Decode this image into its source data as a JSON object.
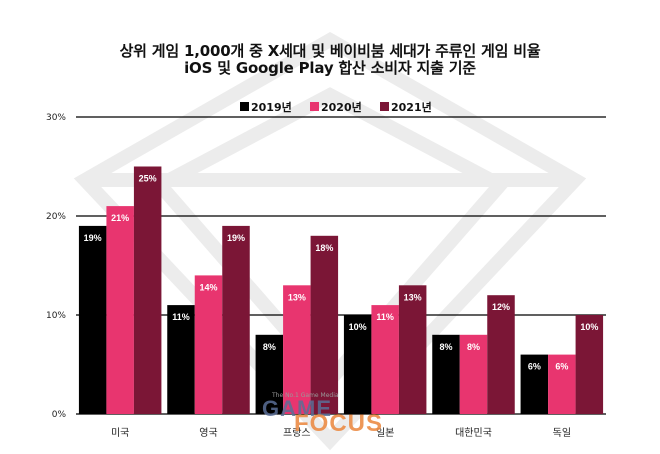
{
  "title": "상위 게임 1,000개 중 X세대 및 베이비붐 세대가 주류인 게임 비율",
  "subtitle": "iOS 및 Google Play 합산 소비자 지출 기준",
  "colors": {
    "s2019": "#000000",
    "s2020": "#e8356f",
    "s2021": "#7b1636",
    "grid": "#000000",
    "watermark": "#ececec"
  },
  "watermark_text": {
    "small": "The No.1 Game Media",
    "game": "GAME",
    "focus": "FOCUS"
  },
  "chart_data": {
    "type": "bar",
    "categories": [
      "미국",
      "영국",
      "프랑스",
      "일본",
      "대한민국",
      "독일"
    ],
    "series": [
      {
        "name": "2019년",
        "values": [
          19,
          11,
          8,
          10,
          8,
          6
        ],
        "labels": [
          "19%",
          "11%",
          "8%",
          "10%",
          "8%",
          "6%"
        ],
        "color": "#000000"
      },
      {
        "name": "2020년",
        "values": [
          21,
          14,
          13,
          11,
          8,
          6
        ],
        "labels": [
          "21%",
          "14%",
          "13%",
          "11%",
          "8%",
          "6%"
        ],
        "color": "#e8356f"
      },
      {
        "name": "2021년",
        "values": [
          25,
          19,
          18,
          13,
          12,
          10
        ],
        "labels": [
          "25%",
          "19%",
          "18%",
          "13%",
          "12%",
          "10%"
        ],
        "color": "#7b1636"
      }
    ],
    "ylim": [
      0,
      30
    ],
    "yticks": [
      0,
      10,
      20,
      30
    ],
    "ytick_labels": [
      "0%",
      "10%",
      "20%",
      "30%"
    ],
    "legend_position": "top-center",
    "grid": true
  }
}
